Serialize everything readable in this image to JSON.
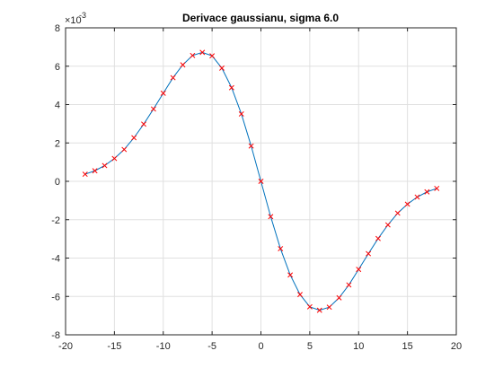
{
  "chart_data": {
    "type": "line",
    "title": "Derivace gaussianu, sigma 6.0",
    "xlabel": "",
    "ylabel": "",
    "xlim": [
      -20,
      20
    ],
    "ylim": [
      -8,
      8
    ],
    "xticks": [
      -20,
      -15,
      -10,
      -5,
      0,
      5,
      10,
      15,
      20
    ],
    "yticks": [
      -8,
      -6,
      -4,
      -2,
      0,
      2,
      4,
      6,
      8
    ],
    "y_exponent_label": "×10",
    "y_exponent_power": "-3",
    "grid": true,
    "legend": "none",
    "colors": {
      "line": "#0072bd",
      "marker": "#ff0000",
      "grid": "#e0e0e0",
      "axis": "#262626"
    },
    "series": [
      {
        "style": "line",
        "x": [
          -18,
          -17,
          -16,
          -15,
          -14,
          -13,
          -12,
          -11,
          -10,
          -9,
          -8,
          -7,
          -6,
          -5,
          -4,
          -3,
          -2,
          -1,
          0,
          1,
          2,
          3,
          4,
          5,
          6,
          7,
          8,
          9,
          10,
          11,
          12,
          13,
          14,
          15,
          16,
          17,
          18
        ],
        "y": [
          0.37,
          0.55,
          0.82,
          1.19,
          1.66,
          2.27,
          2.98,
          3.77,
          4.59,
          5.4,
          6.07,
          6.56,
          6.72,
          6.54,
          5.9,
          4.88,
          3.51,
          1.84,
          0.0,
          -1.84,
          -3.51,
          -4.88,
          -5.9,
          -6.54,
          -6.72,
          -6.56,
          -6.07,
          -5.4,
          -4.59,
          -3.77,
          -2.98,
          -2.27,
          -1.66,
          -1.19,
          -0.82,
          -0.55,
          -0.37
        ]
      },
      {
        "style": "markers",
        "marker": "x",
        "x": [
          -18,
          -17,
          -16,
          -15,
          -14,
          -13,
          -12,
          -11,
          -10,
          -9,
          -8,
          -7,
          -6,
          -5,
          -4,
          -3,
          -2,
          -1,
          0,
          1,
          2,
          3,
          4,
          5,
          6,
          7,
          8,
          9,
          10,
          11,
          12,
          13,
          14,
          15,
          16,
          17,
          18
        ],
        "y": [
          0.37,
          0.55,
          0.82,
          1.19,
          1.66,
          2.27,
          2.98,
          3.77,
          4.59,
          5.4,
          6.07,
          6.56,
          6.72,
          6.54,
          5.9,
          4.88,
          3.51,
          1.84,
          0.0,
          -1.84,
          -3.51,
          -4.88,
          -5.9,
          -6.54,
          -6.72,
          -6.56,
          -6.07,
          -5.4,
          -4.59,
          -3.77,
          -2.98,
          -2.27,
          -1.66,
          -1.19,
          -0.82,
          -0.55,
          -0.37
        ]
      }
    ]
  }
}
